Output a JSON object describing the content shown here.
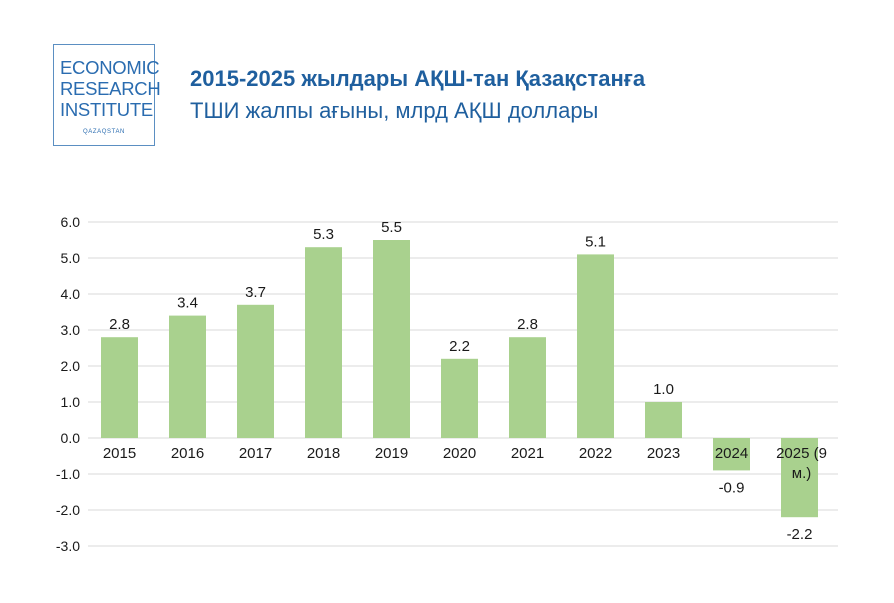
{
  "logo": {
    "line1": "ECONOMIC",
    "line2": "RESEARCH",
    "line3": "INSTITUTE",
    "sub": "QAZAQSTAN"
  },
  "header": {
    "title": "2015-2025 жылдары АҚШ-тан Қазақстанға",
    "subtitle": "ТШИ жалпы ағыны, млрд АҚШ доллары"
  },
  "colors": {
    "bar": "#a9d18e",
    "grid": "#d9d9d9",
    "title": "#1f5f9e"
  },
  "chart_data": {
    "type": "bar",
    "title": "2015-2025 жылдары АҚШ-тан Қазақстанға",
    "subtitle": "ТШИ жалпы ағыны, млрд АҚШ доллары",
    "categories": [
      "2015",
      "2016",
      "2017",
      "2018",
      "2019",
      "2020",
      "2021",
      "2022",
      "2023",
      "2024",
      "2025 (9 м.)"
    ],
    "values": [
      2.8,
      3.4,
      3.7,
      5.3,
      5.5,
      2.2,
      2.8,
      5.1,
      1.0,
      -0.9,
      -2.2
    ],
    "value_labels": [
      "2.8",
      "3.4",
      "3.7",
      "5.3",
      "5.5",
      "2.2",
      "2.8",
      "5.1",
      "1.0",
      "-0.9",
      "-2.2"
    ],
    "ylim": [
      -3.0,
      6.0
    ],
    "yticks": [
      "-3.0",
      "-2.0",
      "-1.0",
      "0.0",
      "1.0",
      "2.0",
      "3.0",
      "4.0",
      "5.0",
      "6.0"
    ],
    "grid": true,
    "legend": "none"
  }
}
